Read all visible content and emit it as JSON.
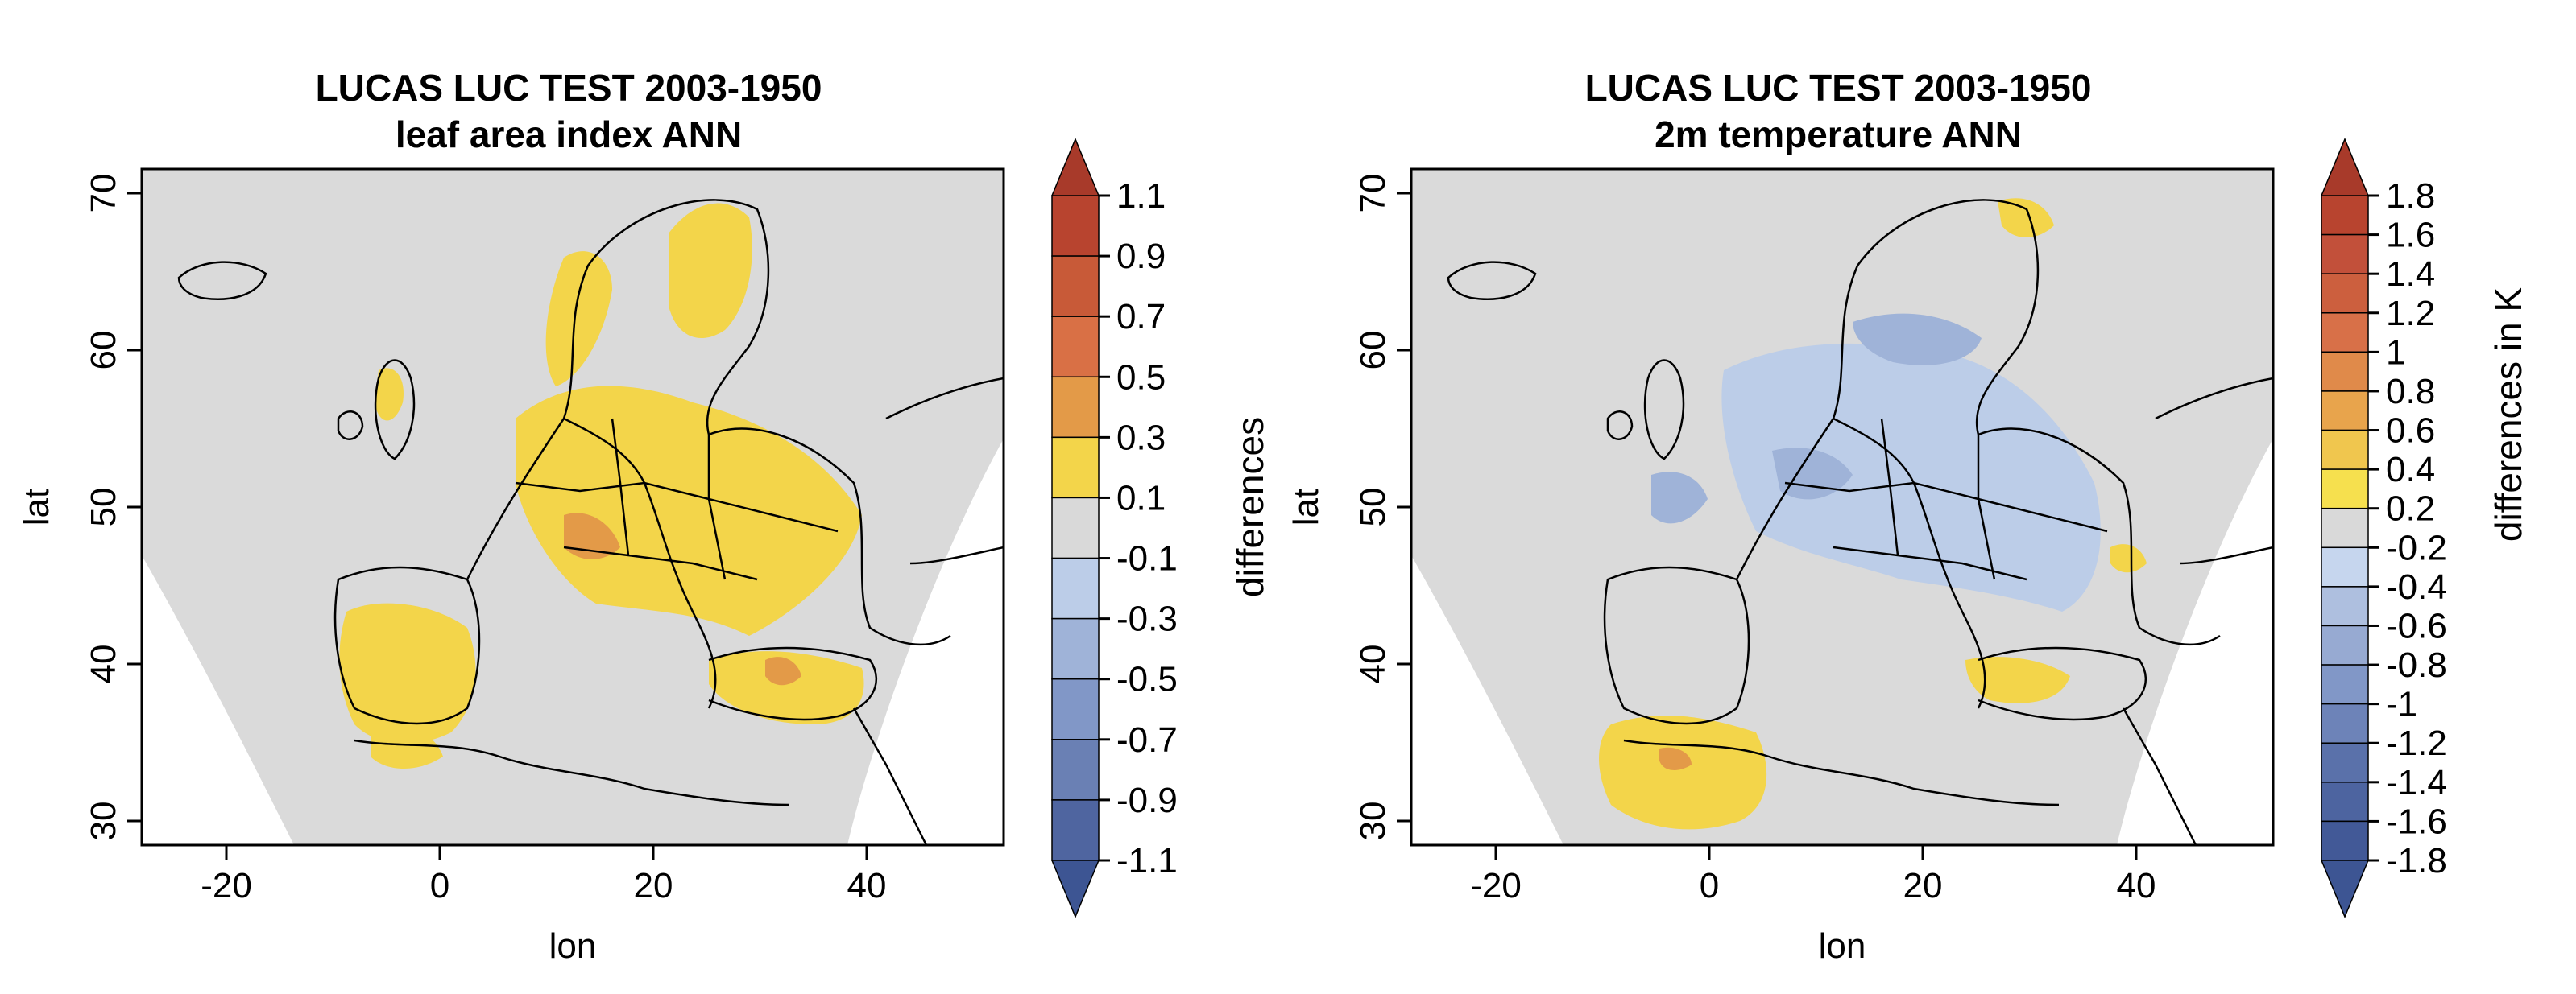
{
  "panels": [
    {
      "title_line1": "LUCAS LUC TEST 2003-1950",
      "title_line2": "leaf area index ANN",
      "xlabel": "lon",
      "ylabel": "lat",
      "x_ticks": [
        "-20",
        "0",
        "20",
        "40"
      ],
      "y_ticks": [
        "30",
        "40",
        "50",
        "60",
        "70"
      ],
      "colorbar": {
        "label": "differences",
        "ticks": [
          "1.1",
          "0.9",
          "0.7",
          "0.5",
          "0.3",
          "0.1",
          "-0.1",
          "-0.3",
          "-0.5",
          "-0.7",
          "-0.9",
          "-1.1"
        ],
        "colors": [
          "#b8442f",
          "#c85a38",
          "#d97045",
          "#e39a48",
          "#f3d54a",
          "#d9d9d9",
          "#bccde8",
          "#9fb3d8",
          "#8197c7",
          "#6a80b4",
          "#4f65a0"
        ],
        "over_color": "#a83a2a",
        "under_color": "#3d5593"
      }
    },
    {
      "title_line1": "LUCAS LUC TEST 2003-1950",
      "title_line2": "2m temperature ANN",
      "xlabel": "lon",
      "ylabel": "lat",
      "x_ticks": [
        "-20",
        "0",
        "20",
        "40"
      ],
      "y_ticks": [
        "30",
        "40",
        "50",
        "60",
        "70"
      ],
      "colorbar": {
        "label": "differences in K",
        "ticks": [
          "1.8",
          "1.6",
          "1.4",
          "1.2",
          "1",
          "0.8",
          "0.6",
          "0.4",
          "0.2",
          "-0.2",
          "-0.4",
          "-0.6",
          "-0.8",
          "-1",
          "-1.2",
          "-1.4",
          "-1.6",
          "-1.8"
        ],
        "colors": [
          "#b8442f",
          "#c2503a",
          "#cc5f3e",
          "#d87048",
          "#e08a4a",
          "#e8a44c",
          "#f0c64e",
          "#f6e04e",
          "#d9d9d9",
          "#c6d6ee",
          "#aebfdf",
          "#97aad2",
          "#8197c7",
          "#6d83b8",
          "#5a71aa",
          "#4d64a0",
          "#425997"
        ],
        "over_color": "#a83a2a",
        "under_color": "#3d5593"
      }
    }
  ]
}
